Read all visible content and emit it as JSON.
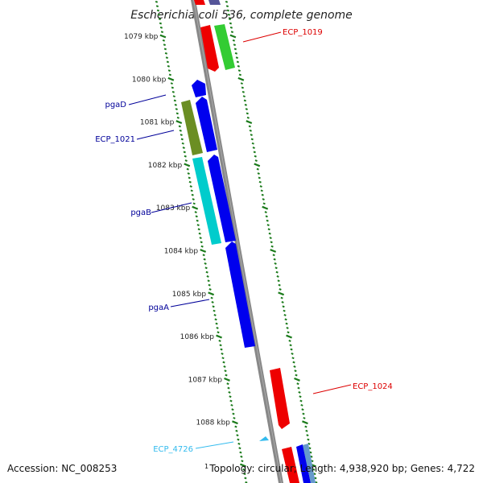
{
  "title": "Escherichia coli 536, complete genome",
  "ticks": [
    {
      "label": "1079 kbp",
      "kb": 1079
    },
    {
      "label": "1080 kbp",
      "kb": 1080
    },
    {
      "label": "1081 kbp",
      "kb": 1081
    },
    {
      "label": "1082 kbp",
      "kb": 1082
    },
    {
      "label": "1083 kbp",
      "kb": 1083
    },
    {
      "label": "1084 kbp",
      "kb": 1084
    },
    {
      "label": "1085 kbp",
      "kb": 1085
    },
    {
      "label": "1086 kbp",
      "kb": 1086
    },
    {
      "label": "1087 kbp",
      "kb": 1087
    },
    {
      "label": "1088 kbp",
      "kb": 1088
    }
  ],
  "genes": [
    {
      "name": "ECP_1019",
      "color": "#dd0000"
    },
    {
      "name": "pgaD",
      "color": "#000099"
    },
    {
      "name": "ECP_1021",
      "color": "#000099"
    },
    {
      "name": "pgaB",
      "color": "#000099"
    },
    {
      "name": "pgaA",
      "color": "#000099"
    },
    {
      "name": "ECP_1024",
      "color": "#dd0000"
    },
    {
      "name": "ECP_4726",
      "color": "#33bbee"
    }
  ],
  "colors": {
    "backbone": "#888888",
    "tick_track": "#1a7a1a",
    "blue": "#0000ee",
    "red": "#ee0000",
    "green": "#33cc33",
    "olive": "#6b8e23",
    "cyan": "#00cccc",
    "lightblue": "#33bbee",
    "navy": "#555599"
  },
  "footer": {
    "accession": "Accession: NC_008253",
    "marker": "1",
    "summary": "Topology: circular; Length: 4,938,920 bp; Genes: 4,722"
  }
}
